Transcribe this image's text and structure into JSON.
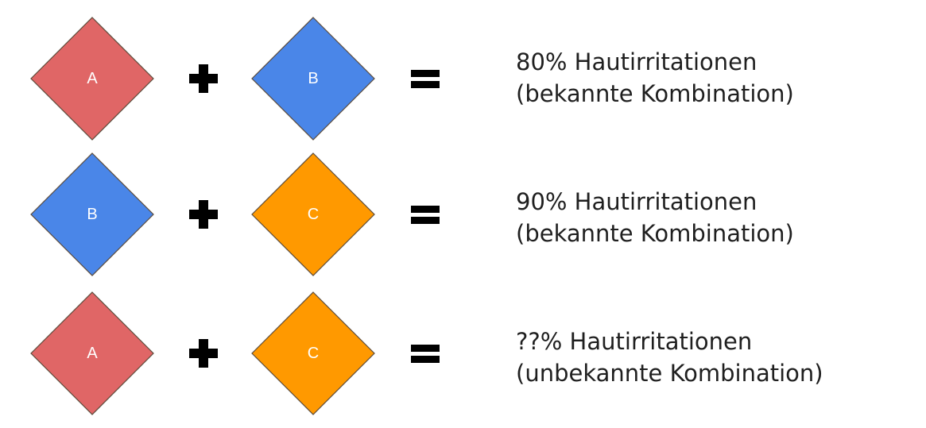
{
  "colors": {
    "A": "#e06666",
    "B": "#4a86e8",
    "C": "#ff9900",
    "operator": "#000000",
    "text": "#1f1f1f"
  },
  "rows": [
    {
      "left": "A",
      "right": "B",
      "result_line1": "80% Hautirritationen",
      "result_line2": "(bekannte Kombination)"
    },
    {
      "left": "B",
      "right": "C",
      "result_line1": "90% Hautirritationen",
      "result_line2": "(bekannte Kombination)"
    },
    {
      "left": "A",
      "right": "C",
      "result_line1": "??% Hautirritationen",
      "result_line2": "(unbekannte Kombination)"
    }
  ]
}
